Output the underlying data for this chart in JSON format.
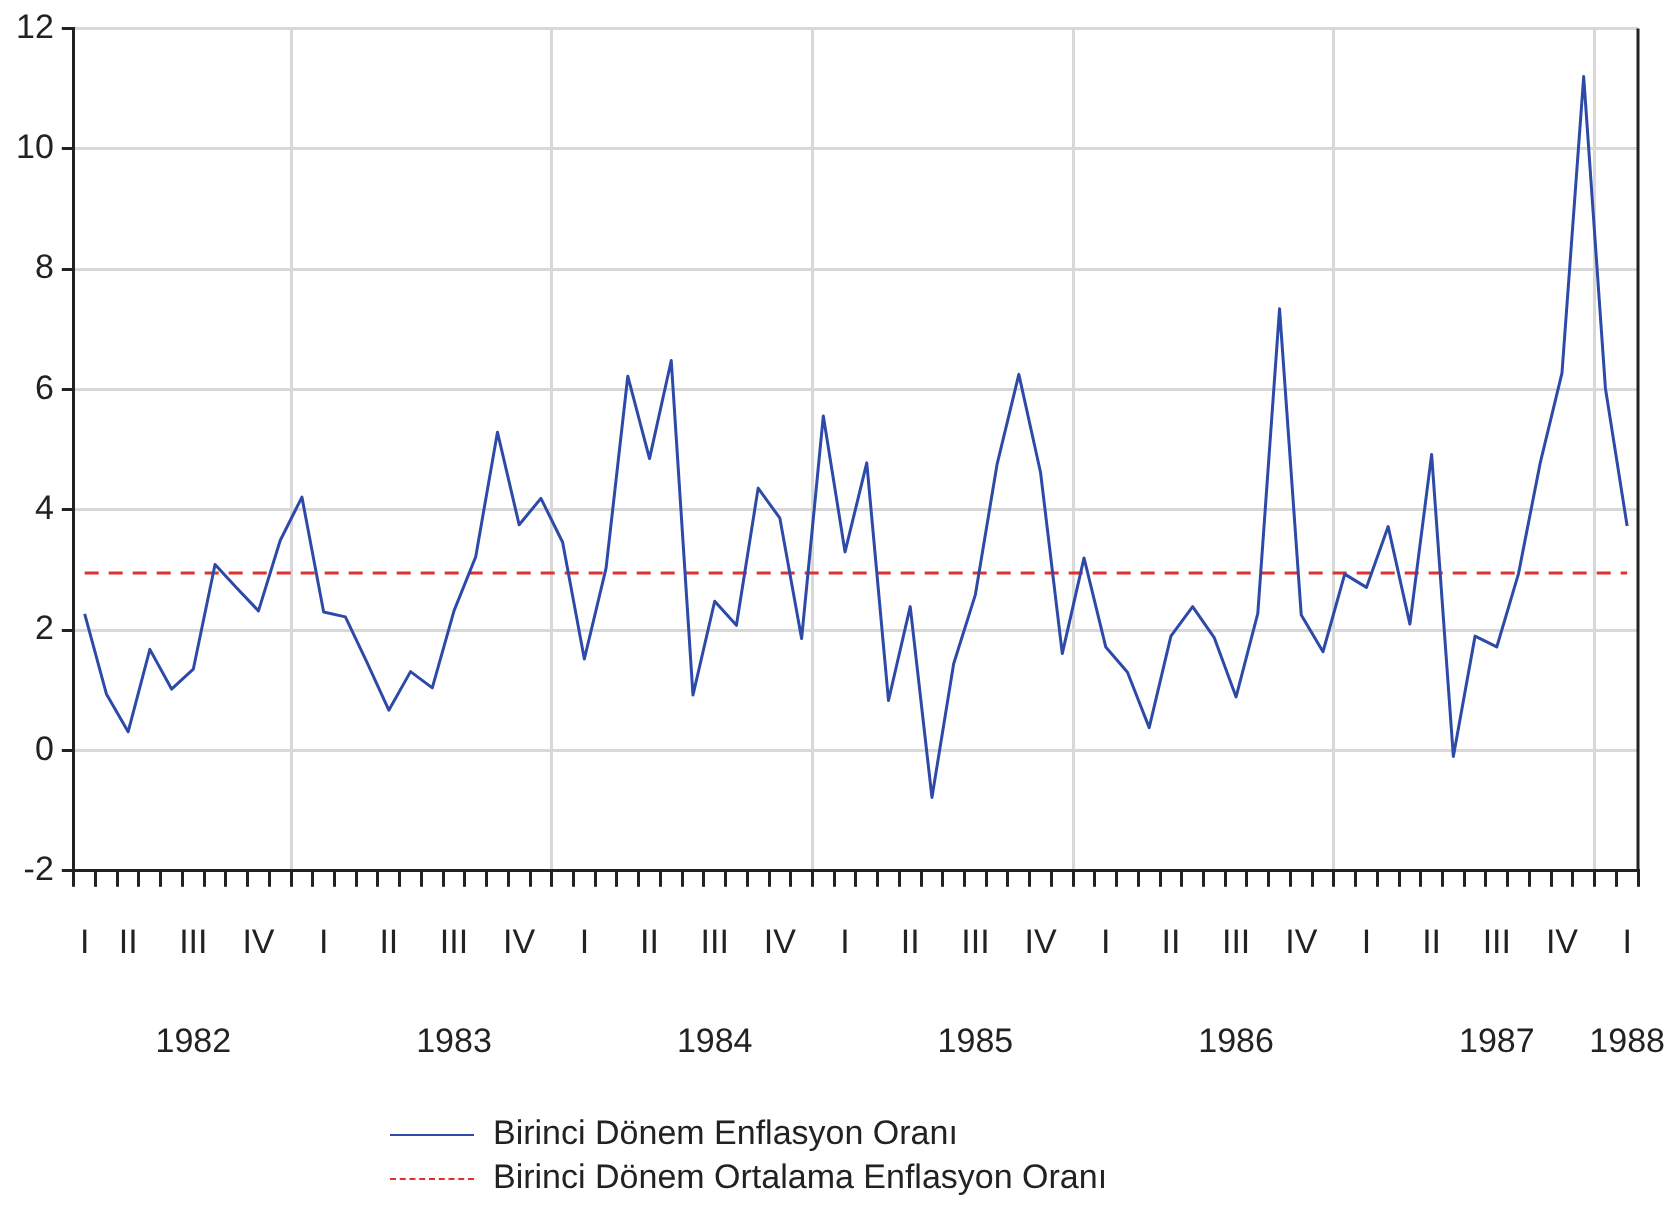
{
  "chart_data": {
    "type": "line",
    "categories": [
      "I",
      null,
      "II",
      null,
      null,
      "III\n1982",
      null,
      null,
      "IV",
      null,
      null,
      "I",
      null,
      null,
      "II",
      null,
      null,
      "III\n1983",
      null,
      null,
      "IV",
      null,
      null,
      "I",
      null,
      null,
      "II",
      null,
      null,
      "III\n1984",
      null,
      null,
      "IV",
      null,
      null,
      "I",
      null,
      null,
      "II",
      null,
      null,
      "III\n1985",
      null,
      null,
      "IV",
      null,
      null,
      "I",
      null,
      null,
      "II",
      null,
      null,
      "III\n1986",
      null,
      null,
      "IV",
      null,
      null,
      "I",
      null,
      null,
      "II",
      null,
      null,
      "III\n1987",
      null,
      null,
      "IV",
      null,
      null,
      "I\n1988"
    ],
    "series": [
      {
        "name": "Birinci Dönem Enflasyon Oranı",
        "color": "#2e4aa8",
        "values": [
          2.27,
          0.94,
          0.31,
          1.68,
          1.02,
          1.35,
          3.09,
          2.7,
          2.32,
          3.49,
          4.21,
          2.3,
          2.22,
          1.46,
          0.67,
          1.31,
          1.04,
          2.32,
          3.22,
          5.29,
          3.75,
          4.19,
          3.46,
          1.52,
          3.03,
          6.22,
          4.85,
          6.48,
          0.92,
          2.48,
          2.08,
          4.36,
          3.86,
          1.86,
          5.56,
          3.3,
          4.78,
          0.83,
          2.39,
          -0.78,
          1.44,
          2.59,
          4.76,
          6.25,
          4.62,
          1.61,
          3.2,
          1.72,
          1.3,
          0.38,
          1.9,
          2.39,
          1.87,
          0.89,
          2.28,
          7.34,
          2.25,
          1.64,
          2.93,
          2.71,
          3.72,
          2.1,
          4.92,
          -0.1,
          1.9,
          1.72,
          2.94,
          4.78,
          6.27,
          11.2,
          6.02,
          3.73
        ]
      }
    ],
    "ref_lines": [
      {
        "axis": "y",
        "value": 2.95,
        "label": "Birinci Dönem Ortalama Enflasyon Oranı",
        "color": "#e03030",
        "line_style": "dashed"
      }
    ],
    "ylim": [
      -2,
      12
    ],
    "yticks": [
      -2,
      0,
      2,
      4,
      6,
      8,
      10,
      12
    ],
    "grid": true,
    "legend": "bottom",
    "marker": "none",
    "line_style": "solid"
  }
}
